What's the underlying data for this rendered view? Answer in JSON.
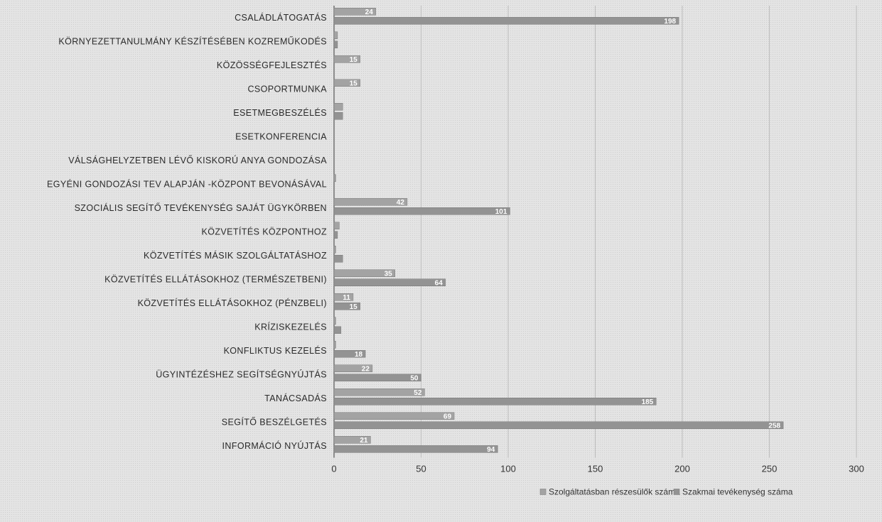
{
  "chart_data": {
    "type": "bar",
    "orientation": "horizontal",
    "categories": [
      "CSALÁDLÁTOGATÁS",
      "KÖRNYEZETTANULMÁNY KÉSZÍTÉSÉBEN KOZREMŰKODÉS",
      "KÖZÖSSÉGFEJLESZTÉS",
      "CSOPORTMUNKA",
      "ESETMEGBESZÉLÉS",
      "ESETKONFERENCIA",
      "VÁLSÁGHELYZETBEN LÉVŐ KISKORÚ ANYA GONDOZÁSA",
      "EGYÉNI GONDOZÁSI TEV ALAPJÁN -KÖZPONT BEVONÁSÁVAL",
      "SZOCIÁLIS SEGÍTŐ TEVÉKENYSÉG SAJÁT ÜGYKÖRBEN",
      "KÖZVETÍTÉS KÖZPONTHOZ",
      "KÖZVETÍTÉS MÁSIK SZOLGÁLTATÁSHOZ",
      "KÖZVETÍTÉS ELLÁTÁSOKHOZ (TERMÉSZETBENI)",
      "KÖZVETÍTÉS ELLÁTÁSOKHOZ (PÉNZBELI)",
      "KRÍZISKEZELÉS",
      "KONFLIKTUS KEZELÉS",
      "ÜGYINTÉZÉSHEZ SEGÍTSÉGNYÚJTÁS",
      "TANÁCSADÁS",
      "SEGÍTŐ BESZÉLGETÉS",
      "INFORMÁCIÓ NYÚJTÁS"
    ],
    "series": [
      {
        "name": "Szolgáltatásban részesülők száma",
        "color": "#a3a3a3",
        "values": [
          24,
          2,
          15,
          15,
          5,
          0,
          0,
          1,
          42,
          3,
          1,
          35,
          11,
          1,
          1,
          22,
          52,
          69,
          21
        ],
        "labels": [
          "24",
          "",
          "15",
          "15",
          "",
          "",
          "",
          "",
          "42",
          "",
          "",
          "35",
          "11",
          "",
          "",
          "22",
          "52",
          "69",
          "21"
        ]
      },
      {
        "name": "Szakmai tevékenység száma",
        "color": "#939393",
        "values": [
          198,
          2,
          0,
          0,
          5,
          0,
          0,
          0,
          101,
          2,
          5,
          64,
          15,
          4,
          18,
          50,
          185,
          258,
          94
        ],
        "labels": [
          "198",
          "",
          "",
          "",
          "",
          "",
          "",
          "",
          "101",
          "",
          "",
          "64",
          "15",
          "",
          "18",
          "50",
          "185",
          "258",
          "94"
        ]
      }
    ],
    "xlim": [
      0,
      300
    ],
    "xticks": [
      "0",
      "50",
      "100",
      "150",
      "200",
      "250",
      "300"
    ],
    "grid": true,
    "legend": "bottom"
  }
}
